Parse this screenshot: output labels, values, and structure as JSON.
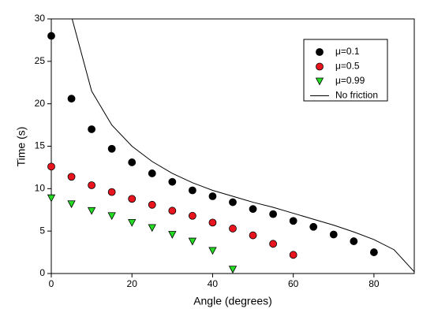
{
  "chart_data": {
    "type": "scatter",
    "x_label": "Angle (degrees)",
    "y_label": "Time (s)",
    "x": [
      0,
      5,
      10,
      15,
      20,
      25,
      30,
      35,
      40,
      45,
      50,
      55,
      60,
      65,
      70,
      75,
      80,
      85,
      90
    ],
    "series": [
      {
        "name": "μ=0.1",
        "color": "#000000",
        "marker": "circle",
        "values": [
          28.0,
          20.6,
          17.0,
          14.7,
          13.1,
          11.8,
          10.8,
          9.8,
          9.1,
          8.4,
          7.6,
          7.0,
          6.2,
          5.5,
          4.6,
          3.8,
          2.5,
          null,
          null
        ]
      },
      {
        "name": "μ=0.5",
        "color": "#e8141e",
        "marker": "circle",
        "values": [
          12.6,
          11.4,
          10.4,
          9.6,
          8.8,
          8.1,
          7.4,
          6.8,
          6.0,
          5.3,
          4.5,
          3.5,
          2.2,
          null,
          null,
          null,
          null,
          null,
          null
        ]
      },
      {
        "name": "μ=0.99",
        "color": "#22dd22",
        "marker": "triangle-down",
        "values": [
          8.9,
          8.2,
          7.4,
          6.8,
          6.0,
          5.4,
          4.6,
          3.8,
          2.7,
          0.5,
          null,
          null,
          null,
          null,
          null,
          null,
          null,
          null,
          null
        ]
      },
      {
        "name": "No friction",
        "color": "#000000",
        "marker": "line",
        "values": [
          null,
          30.3,
          21.5,
          17.5,
          15.0,
          13.2,
          11.8,
          10.7,
          9.8,
          9.1,
          8.4,
          7.8,
          7.1,
          6.4,
          5.7,
          4.9,
          4.0,
          2.8,
          0.2
        ]
      }
    ],
    "xlim": [
      0,
      90
    ],
    "xticks": [
      0,
      20,
      40,
      60,
      80
    ],
    "ylim": [
      0,
      30
    ],
    "yticks": [
      0,
      5,
      10,
      15,
      20,
      25,
      30
    ],
    "grid": false,
    "legend": "upper right"
  }
}
